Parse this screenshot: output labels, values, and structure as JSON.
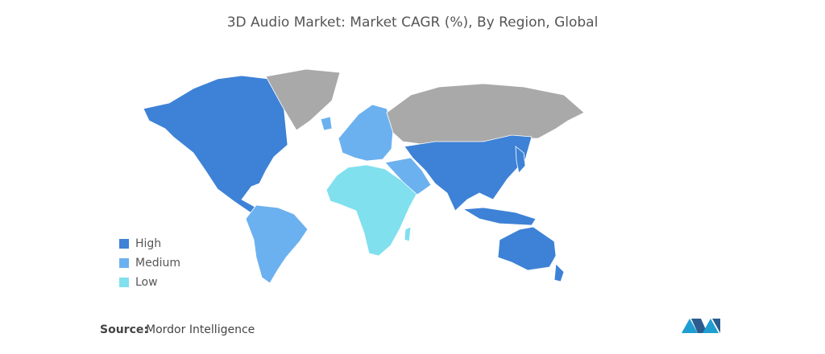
{
  "title": "3D Audio Market: Market CAGR (%), By Region, Global",
  "legend": [
    {
      "label": "High",
      "color": "#3d82d6"
    },
    {
      "label": "Medium",
      "color": "#6cb1ef"
    },
    {
      "label": "Low",
      "color": "#80e0ee"
    }
  ],
  "source": {
    "label": "Source:",
    "text": "Mordor Intelligence"
  }
}
